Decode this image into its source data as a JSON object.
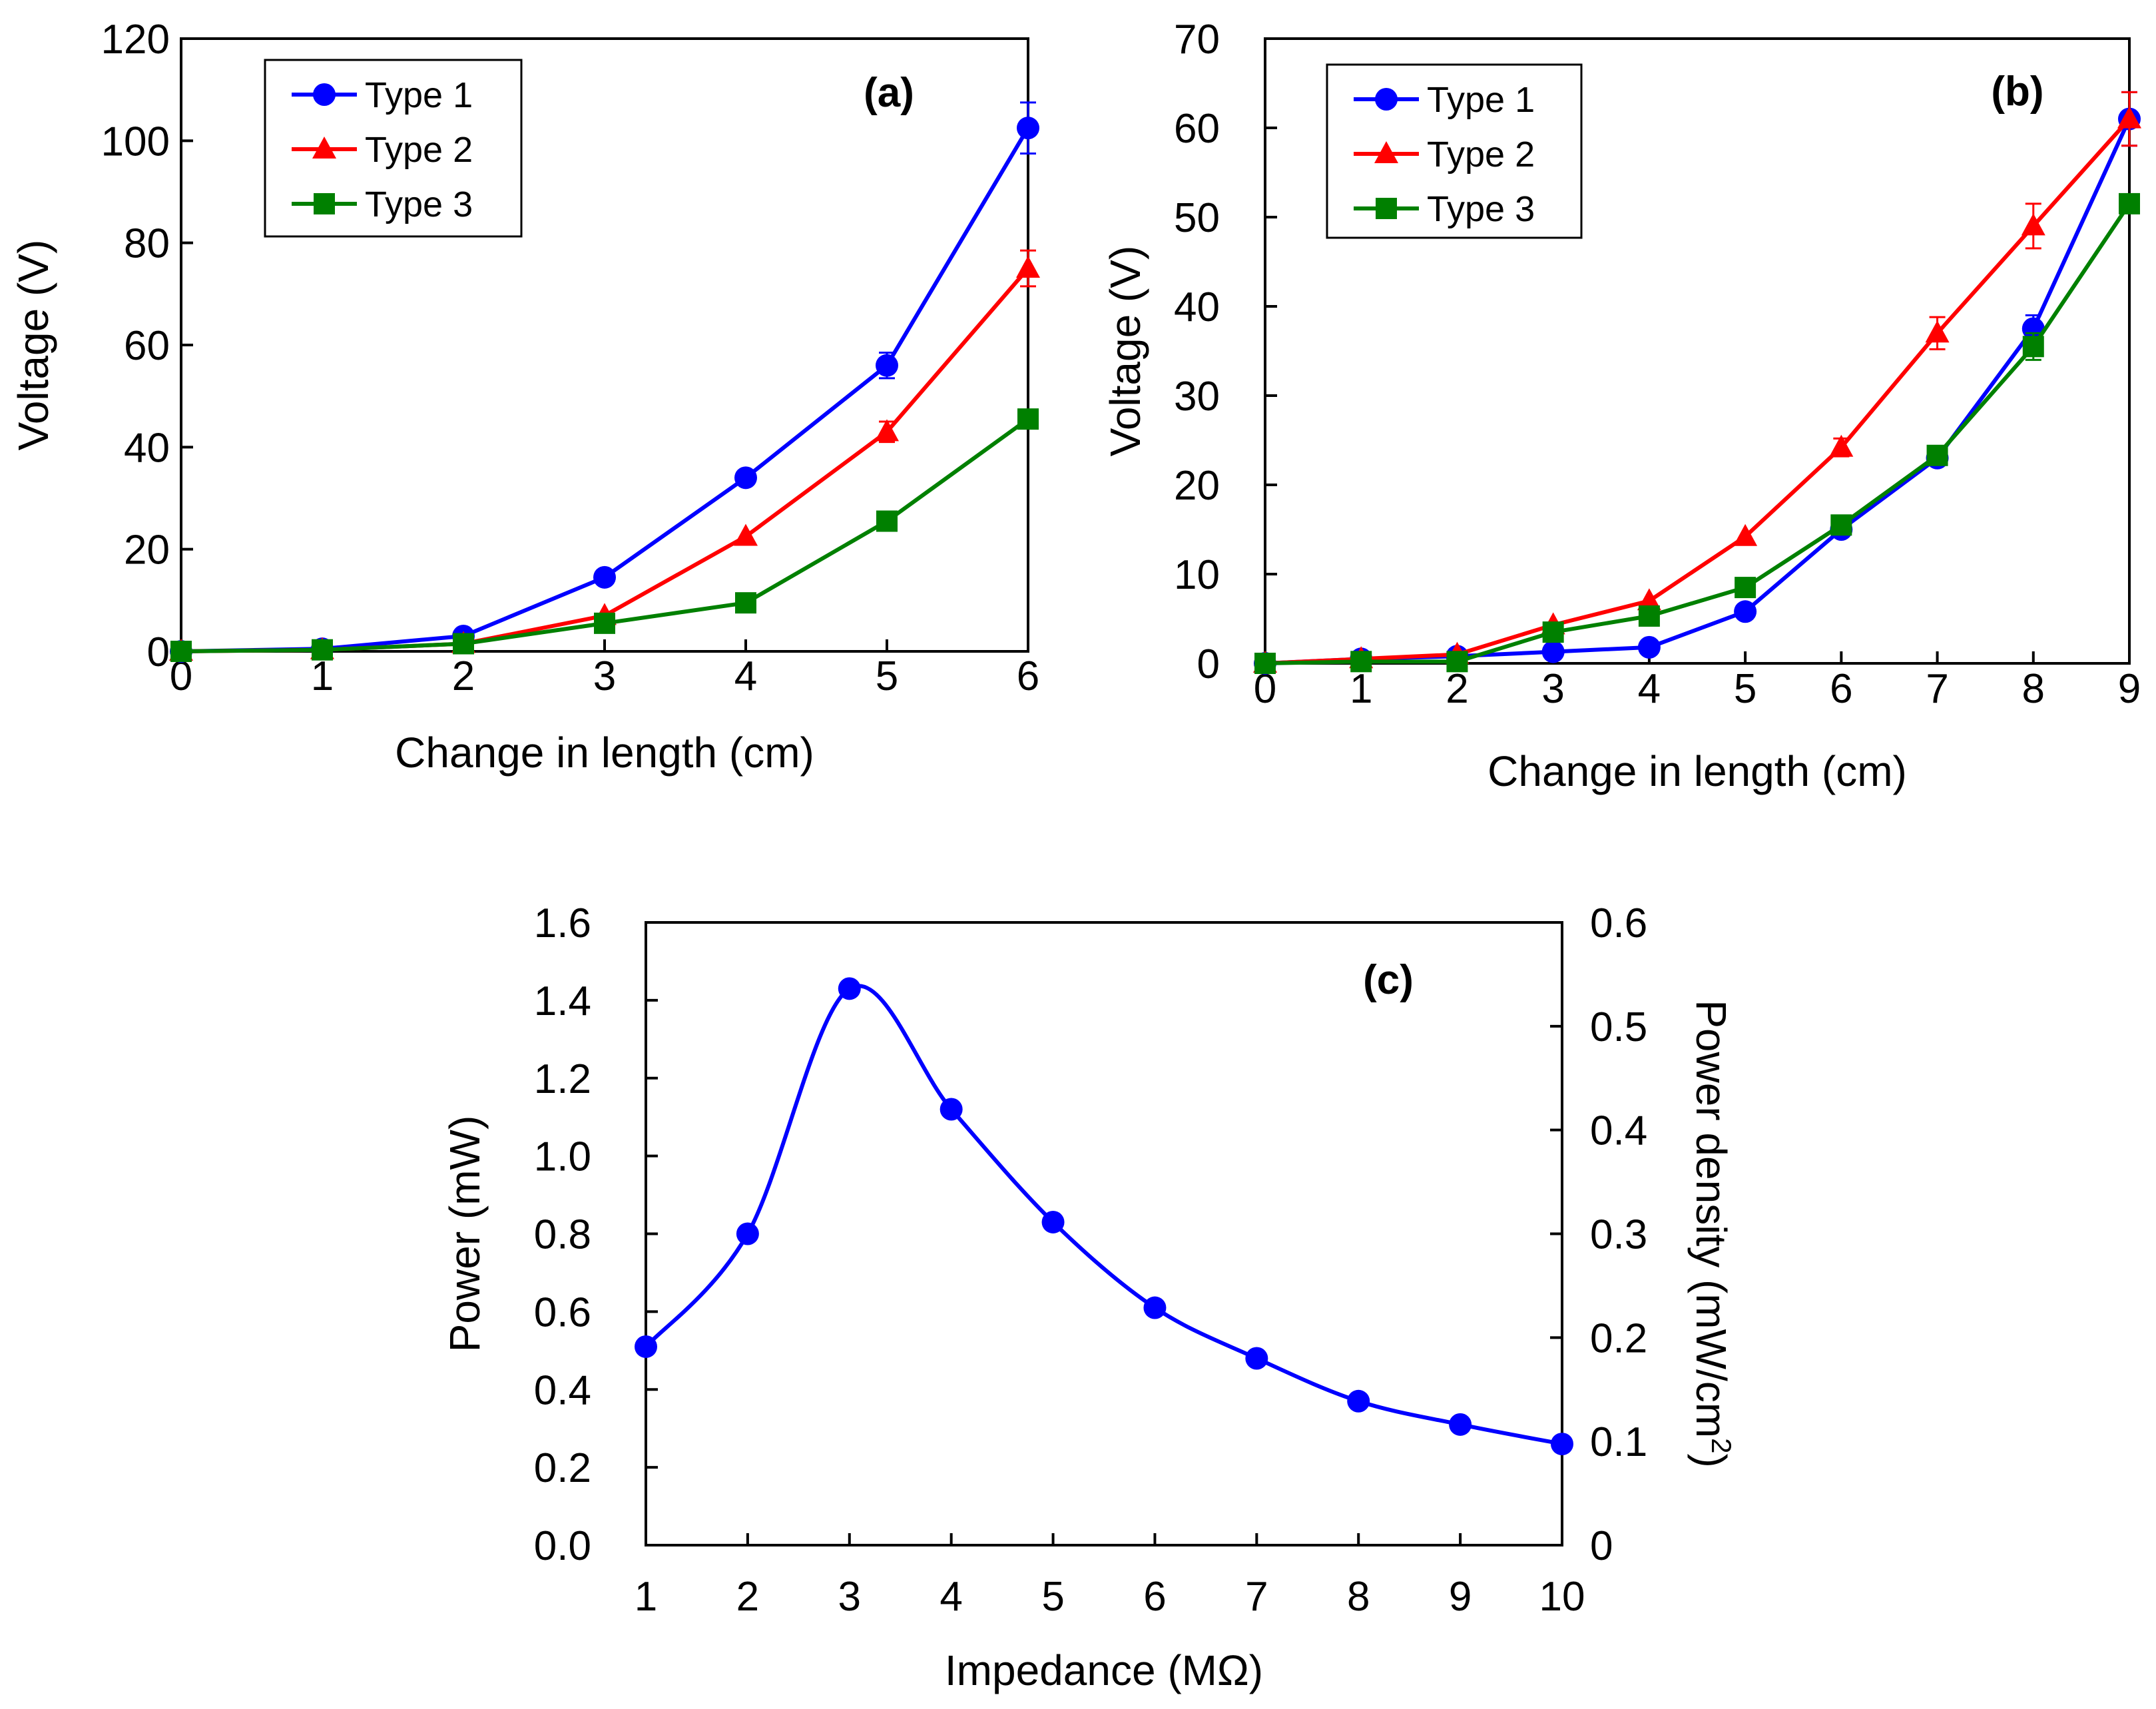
{
  "chart_data": [
    {
      "id": "a",
      "type": "line",
      "panel_label": "(a)",
      "xlabel": "Change in length (cm)",
      "ylabel": "Voltage (V)",
      "xlim": [
        0,
        6
      ],
      "ylim": [
        0,
        120
      ],
      "xticks": [
        "0",
        "1",
        "2",
        "3",
        "4",
        "5",
        "6"
      ],
      "yticks": [
        "0",
        "20",
        "40",
        "60",
        "80",
        "100",
        "120"
      ],
      "legend_position": "top-left",
      "x": [
        0,
        1,
        2,
        3,
        4,
        5,
        6
      ],
      "series": [
        {
          "name": "Type 1",
          "color": "#0000ff",
          "marker": "circle",
          "values": [
            0,
            0.5,
            3,
            14.5,
            34,
            56,
            102.5
          ],
          "errors": [
            0,
            0,
            0,
            0,
            0,
            2.5,
            5
          ]
        },
        {
          "name": "Type 2",
          "color": "#ff0000",
          "marker": "triangle",
          "values": [
            0,
            0.3,
            1.5,
            7,
            22.5,
            43,
            75
          ],
          "errors": [
            0,
            0,
            0,
            0,
            0,
            2,
            3.5
          ]
        },
        {
          "name": "Type 3",
          "color": "#008000",
          "marker": "square",
          "values": [
            0,
            0.3,
            1.5,
            5.5,
            9.5,
            25.5,
            45.5
          ],
          "errors": [
            0,
            0,
            0,
            0,
            0,
            0,
            0
          ]
        }
      ]
    },
    {
      "id": "b",
      "type": "line",
      "panel_label": "(b)",
      "xlabel": "Change in length (cm)",
      "ylabel": "Voltage (V)",
      "xlim": [
        0,
        9
      ],
      "ylim": [
        0,
        70
      ],
      "xticks": [
        "0",
        "1",
        "2",
        "3",
        "4",
        "5",
        "6",
        "7",
        "8",
        "9"
      ],
      "yticks": [
        "0",
        "10",
        "20",
        "30",
        "40",
        "50",
        "60",
        "70"
      ],
      "legend_position": "top-left",
      "x": [
        0,
        1,
        2,
        3,
        4,
        5,
        6,
        7,
        8,
        9
      ],
      "series": [
        {
          "name": "Type 1",
          "color": "#0000ff",
          "marker": "circle",
          "values": [
            0,
            0.5,
            0.8,
            1.3,
            1.8,
            5.8,
            15,
            23,
            37.5,
            61
          ],
          "errors": [
            0,
            0,
            0,
            0,
            0,
            0,
            0,
            0,
            1.5,
            3
          ]
        },
        {
          "name": "Type 2",
          "color": "#ff0000",
          "marker": "triangle",
          "values": [
            0,
            0.5,
            1,
            4.3,
            7,
            14.2,
            24.2,
            37,
            49,
            61
          ],
          "errors": [
            0,
            0,
            0,
            0,
            0,
            0,
            1,
            1.8,
            2.5,
            3
          ]
        },
        {
          "name": "Type 3",
          "color": "#008000",
          "marker": "square",
          "values": [
            0,
            0.2,
            0.2,
            3.5,
            5.3,
            8.5,
            15.5,
            23.3,
            35.5,
            51.5
          ],
          "errors": [
            0,
            0,
            0,
            0,
            0,
            0,
            0,
            0,
            1.5,
            0
          ]
        }
      ]
    },
    {
      "id": "c",
      "type": "line",
      "panel_label": "(c)",
      "xlabel": "Impedance (MΩ)",
      "ylabel": "Power (mW)",
      "y2label_main": "Power density (mW/cm",
      "y2label_sup": "2",
      "y2label_close": ")",
      "xlim": [
        1,
        10
      ],
      "ylim": [
        0,
        1.6
      ],
      "y2lim": [
        0,
        0.6
      ],
      "xticks": [
        "1",
        "2",
        "3",
        "4",
        "5",
        "6",
        "7",
        "8",
        "9",
        "10"
      ],
      "yticks": [
        "0.0",
        "0.2",
        "0.4",
        "0.6",
        "0.8",
        "1.0",
        "1.2",
        "1.4",
        "1.6"
      ],
      "y2ticks": [
        "0",
        "0.1",
        "0.2",
        "0.3",
        "0.4",
        "0.5",
        "0.6"
      ],
      "x": [
        1,
        2,
        3,
        4,
        5,
        6,
        7,
        8,
        9,
        10
      ],
      "series": [
        {
          "name": "Power",
          "color": "#0000ff",
          "marker": "circle",
          "smooth": true,
          "values": [
            0.51,
            0.8,
            1.43,
            1.12,
            0.83,
            0.61,
            0.48,
            0.37,
            0.31,
            0.26
          ]
        }
      ]
    }
  ]
}
